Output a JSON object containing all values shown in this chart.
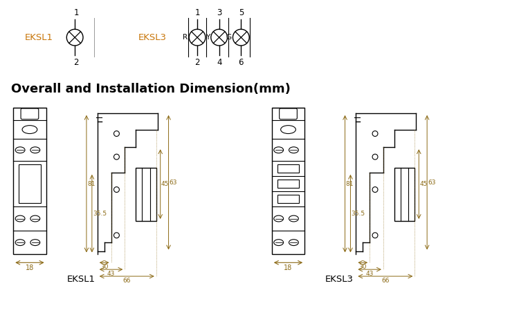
{
  "bg_color": "#ffffff",
  "line_color": "#000000",
  "dim_color": "#8B6914",
  "label_color": "#c8760a",
  "title": "Overall and Installation Dimension(mm)",
  "title_fontsize": 13,
  "eksl1_label": "EKSL1",
  "eksl3_label": "EKSL3",
  "dims": {
    "d18": "18",
    "d30": "30",
    "d43": "43",
    "d66": "66",
    "d81": "81",
    "d355": "35.5",
    "d45": "45",
    "d63": "63"
  }
}
